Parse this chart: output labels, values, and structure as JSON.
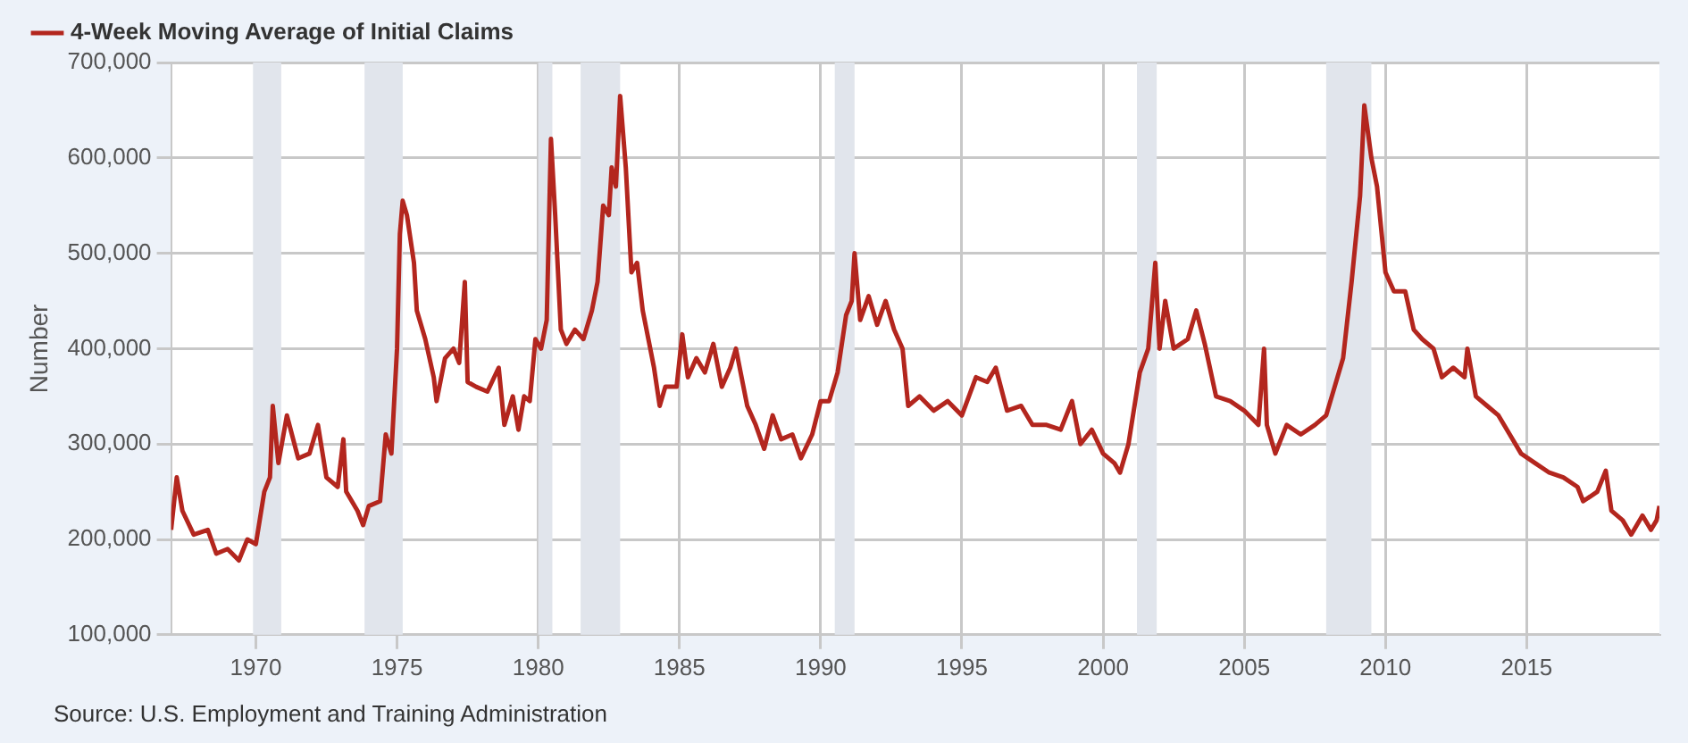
{
  "chart_data": {
    "type": "line",
    "ylabel": "Number",
    "legend": "top left",
    "grid": true,
    "marker": "none",
    "line_style": "solid",
    "xlim": [
      1967.0,
      2019.7
    ],
    "xticks": [
      1970,
      1975,
      1980,
      1985,
      1990,
      1995,
      2000,
      2005,
      2010,
      2015
    ],
    "ylim": [
      100000,
      700000
    ],
    "yticks": [
      {
        "value": 100000,
        "label": "100,000"
      },
      {
        "value": 200000,
        "label": "200,000"
      },
      {
        "value": 300000,
        "label": "300,000"
      },
      {
        "value": 400000,
        "label": "400,000"
      },
      {
        "value": 500000,
        "label": "500,000"
      },
      {
        "value": 600000,
        "label": "600,000"
      },
      {
        "value": 700000,
        "label": "700,000"
      }
    ],
    "bands": [
      {
        "axis": "x",
        "from": 1969.9,
        "to": 1970.9,
        "color": "#e1e5ec"
      },
      {
        "axis": "x",
        "from": 1973.85,
        "to": 1975.2,
        "color": "#e1e5ec"
      },
      {
        "axis": "x",
        "from": 1980.0,
        "to": 1980.5,
        "color": "#e1e5ec"
      },
      {
        "axis": "x",
        "from": 1981.5,
        "to": 1982.9,
        "color": "#e1e5ec"
      },
      {
        "axis": "x",
        "from": 1990.5,
        "to": 1991.2,
        "color": "#e1e5ec"
      },
      {
        "axis": "x",
        "from": 2001.2,
        "to": 2001.9,
        "color": "#e1e5ec"
      },
      {
        "axis": "x",
        "from": 2007.9,
        "to": 2009.5,
        "color": "#e1e5ec"
      }
    ],
    "annotations": [
      "Source: U.S. Employment and Training Administration"
    ],
    "series": [
      {
        "name": "4-Week Moving Average of Initial Claims",
        "color": "#b3261e",
        "x": [
          1967.0,
          1967.2,
          1967.4,
          1967.8,
          1968.3,
          1968.6,
          1969.0,
          1969.4,
          1969.7,
          1970.0,
          1970.3,
          1970.5,
          1970.6,
          1970.8,
          1971.1,
          1971.5,
          1971.9,
          1972.2,
          1972.5,
          1972.9,
          1973.1,
          1973.2,
          1973.6,
          1973.8,
          1974.0,
          1974.4,
          1974.6,
          1974.8,
          1975.0,
          1975.1,
          1975.2,
          1975.35,
          1975.6,
          1975.7,
          1976.0,
          1976.3,
          1976.4,
          1976.7,
          1977.0,
          1977.2,
          1977.4,
          1977.5,
          1977.8,
          1978.2,
          1978.6,
          1978.8,
          1979.1,
          1979.3,
          1979.5,
          1979.7,
          1979.9,
          1980.1,
          1980.3,
          1980.45,
          1980.6,
          1980.8,
          1981.0,
          1981.3,
          1981.6,
          1981.9,
          1982.1,
          1982.3,
          1982.5,
          1982.6,
          1982.75,
          1982.9,
          1983.1,
          1983.3,
          1983.5,
          1983.7,
          1983.9,
          1984.1,
          1984.3,
          1984.5,
          1984.9,
          1985.1,
          1985.3,
          1985.6,
          1985.9,
          1986.2,
          1986.5,
          1986.8,
          1987.0,
          1987.4,
          1987.7,
          1988.0,
          1988.3,
          1988.6,
          1989.0,
          1989.3,
          1989.7,
          1990.0,
          1990.3,
          1990.6,
          1990.9,
          1991.1,
          1991.2,
          1991.4,
          1991.7,
          1992.0,
          1992.3,
          1992.6,
          1992.9,
          1993.1,
          1993.5,
          1994.0,
          1994.5,
          1995.0,
          1995.5,
          1995.9,
          1996.2,
          1996.6,
          1997.1,
          1997.5,
          1998.0,
          1998.5,
          1998.9,
          1999.2,
          1999.6,
          2000.0,
          2000.4,
          2000.6,
          2000.9,
          2001.3,
          2001.6,
          2001.85,
          2002.0,
          2002.2,
          2002.5,
          2003.0,
          2003.3,
          2003.6,
          2004.0,
          2004.5,
          2005.0,
          2005.5,
          2005.7,
          2005.8,
          2006.1,
          2006.5,
          2007.0,
          2007.5,
          2007.9,
          2008.2,
          2008.5,
          2008.8,
          2009.1,
          2009.25,
          2009.5,
          2009.7,
          2010.0,
          2010.3,
          2010.7,
          2011.0,
          2011.3,
          2011.7,
          2012.0,
          2012.4,
          2012.8,
          2012.9,
          2013.2,
          2013.6,
          2014.0,
          2014.4,
          2014.8,
          2015.3,
          2015.8,
          2016.3,
          2016.8,
          2017.0,
          2017.5,
          2017.8,
          2018.0,
          2018.4,
          2018.7,
          2018.9,
          2019.1,
          2019.4,
          2019.6,
          2019.7
        ],
        "values": [
          210000,
          265000,
          230000,
          205000,
          210000,
          185000,
          190000,
          178000,
          200000,
          195000,
          250000,
          265000,
          340000,
          280000,
          330000,
          285000,
          290000,
          320000,
          265000,
          255000,
          305000,
          250000,
          230000,
          215000,
          235000,
          240000,
          310000,
          290000,
          400000,
          520000,
          555000,
          540000,
          490000,
          440000,
          410000,
          370000,
          345000,
          390000,
          400000,
          385000,
          470000,
          365000,
          360000,
          355000,
          380000,
          320000,
          350000,
          315000,
          350000,
          345000,
          410000,
          400000,
          430000,
          620000,
          540000,
          420000,
          405000,
          420000,
          410000,
          440000,
          470000,
          550000,
          540000,
          590000,
          570000,
          665000,
          590000,
          480000,
          490000,
          440000,
          410000,
          380000,
          340000,
          360000,
          360000,
          415000,
          370000,
          390000,
          375000,
          405000,
          360000,
          380000,
          400000,
          340000,
          320000,
          295000,
          330000,
          305000,
          310000,
          285000,
          310000,
          345000,
          345000,
          375000,
          435000,
          450000,
          500000,
          430000,
          455000,
          425000,
          450000,
          420000,
          400000,
          340000,
          350000,
          335000,
          345000,
          330000,
          370000,
          365000,
          380000,
          335000,
          340000,
          320000,
          320000,
          315000,
          345000,
          300000,
          315000,
          290000,
          280000,
          270000,
          300000,
          375000,
          400000,
          490000,
          400000,
          450000,
          400000,
          410000,
          440000,
          405000,
          350000,
          345000,
          335000,
          320000,
          400000,
          320000,
          290000,
          320000,
          310000,
          320000,
          330000,
          360000,
          390000,
          470000,
          560000,
          655000,
          600000,
          570000,
          480000,
          460000,
          460000,
          420000,
          410000,
          400000,
          370000,
          380000,
          370000,
          400000,
          350000,
          340000,
          330000,
          310000,
          290000,
          280000,
          270000,
          265000,
          255000,
          240000,
          250000,
          272000,
          230000,
          220000,
          205000,
          215000,
          225000,
          210000,
          220000,
          235000
        ]
      }
    ]
  }
}
